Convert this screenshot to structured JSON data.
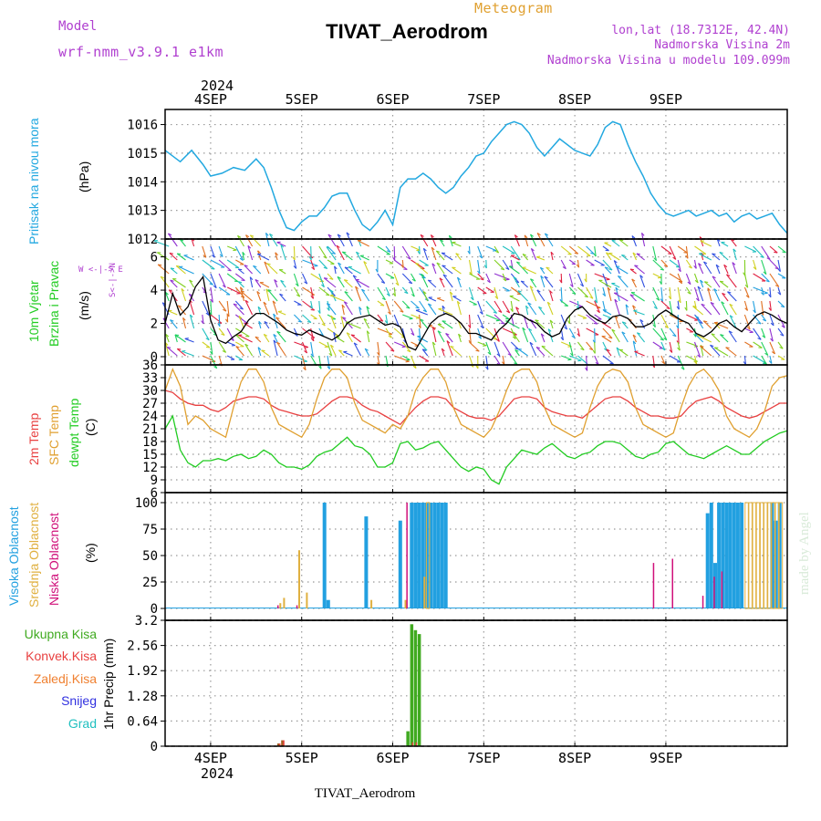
{
  "header": {
    "model_label": "Model",
    "model_name": "wrf-nmm_v3.9.1 e1km",
    "product": "Meteogram",
    "station": "TIVAT_Aerodrom",
    "lonlat": "lon,lat (18.7312E, 42.4N)",
    "altitude": "Nadmorska Visina 2m",
    "model_altitude": "Nadmorska Visina u modelu 109.099m",
    "year": "2024",
    "footer_station": "TIVAT_Aerodrom",
    "watermark": "made by Angel"
  },
  "days": [
    "4SEP",
    "5SEP",
    "6SEP",
    "7SEP",
    "8SEP",
    "9SEP"
  ],
  "colors": {
    "pressure": "#22a8e0",
    "wind_speed": "#000000",
    "gust": "#e83030",
    "temp2m": "#e84040",
    "sfc": "#e0a030",
    "dewpt": "#22cc22",
    "high_cloud": "#22a0e0",
    "mid_cloud": "#e0b040",
    "low_cloud": "#d0107a",
    "precip_total": "#40aa20",
    "precip_conv": "#e84040",
    "precip_grid": "#f08030",
    "snow": "#3030e0",
    "hail": "#20c0c0",
    "purple_text": "#b040d0"
  },
  "panels": {
    "pressure": {
      "label1": "Pritisak na nivou mora",
      "unit": "(hPa)",
      "ticks": [
        1012,
        1013,
        1014,
        1015,
        1016
      ]
    },
    "wind": {
      "label1": "10m Vjetar",
      "label2": "Brzina i Pravac",
      "unit": "(m/s)",
      "ticks": [
        0,
        2,
        4,
        6
      ],
      "compass": "W <-|-> E",
      "compass_v": "S<-|->N"
    },
    "temp": {
      "label1": "2m Temp",
      "label2": "SFC Temp",
      "label3": "dewpt Temp",
      "unit": "(C)",
      "ticks": [
        6,
        9,
        12,
        15,
        18,
        21,
        24,
        27,
        30,
        33,
        36
      ]
    },
    "cloud": {
      "label1": "Visoka Oblacnost",
      "label2": "Srednja Oblacnost",
      "label3": "Niska Oblacnost",
      "unit": "(%)",
      "ticks": [
        0,
        25,
        50,
        75,
        100
      ]
    },
    "precip": {
      "unit": "1hr Precip (mm)",
      "ticks": [
        "0",
        "0.64",
        "1.28",
        "1.92",
        "2.56",
        "3.2"
      ],
      "legend": [
        "Ukupna Kisa",
        "Konvek.Kisa",
        "Zaledj.Kisa",
        "Snijeg",
        "Grad"
      ]
    }
  },
  "chart_data": [
    {
      "type": "line",
      "title": "Pritisak na nivou mora",
      "ylabel": "(hPa)",
      "ylim": [
        1012,
        1016.4
      ],
      "xlim_hours": [
        -12,
        152
      ],
      "x_hours": [
        -12,
        -8,
        -5,
        -2,
        0,
        3,
        6,
        9,
        12,
        14,
        16,
        18,
        20,
        22,
        24,
        26,
        28,
        30,
        32,
        34,
        36,
        38,
        40,
        42,
        44,
        46,
        48,
        50,
        52,
        54,
        56,
        58,
        60,
        62,
        64,
        66,
        68,
        70,
        72,
        74,
        76,
        78,
        80,
        82,
        84,
        86,
        88,
        90,
        92,
        94,
        96,
        98,
        100,
        102,
        104,
        106,
        108,
        110,
        112,
        114,
        116,
        118,
        120,
        122,
        124,
        126,
        128,
        130,
        132,
        134,
        136,
        138,
        140,
        142,
        144,
        146,
        148,
        150,
        152
      ],
      "series": [
        {
          "values": [
            1015.1,
            1014.7,
            1015.1,
            1014.6,
            1014.2,
            1014.3,
            1014.5,
            1014.4,
            1014.8,
            1014.5,
            1013.8,
            1013.0,
            1012.4,
            1012.3,
            1012.6,
            1012.8,
            1012.8,
            1013.1,
            1013.5,
            1013.6,
            1013.6,
            1013.0,
            1012.5,
            1012.3,
            1012.6,
            1013.0,
            1012.5,
            1013.8,
            1014.1,
            1014.1,
            1014.3,
            1014.1,
            1013.8,
            1013.6,
            1013.8,
            1014.2,
            1014.5,
            1014.9,
            1015.0,
            1015.4,
            1015.7,
            1016.0,
            1016.1,
            1016.0,
            1015.7,
            1015.2,
            1014.9,
            1015.2,
            1015.5,
            1015.3,
            1015.1,
            1015.0,
            1014.9,
            1015.3,
            1015.9,
            1016.1,
            1016.0,
            1015.3,
            1014.7,
            1014.2,
            1013.6,
            1013.2,
            1012.9,
            1012.8,
            1012.9,
            1013.0,
            1012.8,
            1012.9,
            1013.0,
            1012.8,
            1012.9,
            1012.6,
            1012.8,
            1012.9,
            1012.7,
            1012.8,
            1012.9,
            1012.5,
            1012.2
          ]
        }
      ]
    },
    {
      "type": "line",
      "title": "10m Vjetar Brzina i Pravac",
      "ylabel": "(m/s)",
      "ylim": [
        0,
        7
      ],
      "xlim_hours": [
        -12,
        152
      ],
      "x_hours": [
        -12,
        -10,
        -8,
        -6,
        -4,
        -2,
        0,
        2,
        4,
        6,
        8,
        10,
        12,
        14,
        16,
        18,
        20,
        22,
        24,
        26,
        28,
        30,
        32,
        34,
        36,
        38,
        40,
        42,
        44,
        46,
        48,
        50,
        52,
        54,
        56,
        58,
        60,
        62,
        64,
        66,
        68,
        70,
        72,
        74,
        76,
        78,
        80,
        82,
        84,
        86,
        88,
        90,
        92,
        94,
        96,
        98,
        100,
        102,
        104,
        106,
        108,
        110,
        112,
        114,
        116,
        118,
        120,
        122,
        124,
        126,
        128,
        130,
        132,
        134,
        136,
        138,
        140,
        142,
        144,
        146,
        148,
        150,
        152
      ],
      "series": [
        {
          "name": "Brzina",
          "values": [
            2.0,
            3.8,
            2.5,
            3.0,
            4.2,
            4.8,
            2.2,
            1.0,
            0.8,
            1.2,
            1.5,
            2.2,
            2.6,
            2.6,
            2.3,
            2.0,
            1.6,
            1.4,
            1.3,
            1.6,
            1.4,
            1.2,
            1.0,
            1.3,
            2.0,
            2.3,
            2.4,
            2.5,
            2.2,
            1.9,
            2.0,
            1.8,
            0.6,
            0.4,
            1.2,
            2.0,
            2.4,
            2.6,
            2.4,
            2.0,
            1.4,
            1.4,
            1.2,
            1.0,
            1.6,
            2.0,
            2.6,
            2.5,
            2.2,
            2.0,
            1.5,
            1.2,
            1.4,
            2.3,
            2.8,
            3.0,
            2.5,
            2.2,
            2.0,
            2.4,
            2.5,
            2.3,
            1.8,
            1.8,
            2.0,
            2.5,
            2.8,
            2.5,
            2.2,
            2.0,
            1.4,
            1.2,
            1.5,
            2.0,
            2.2,
            1.8,
            1.5,
            2.0,
            2.5,
            2.7,
            2.5,
            2.2,
            2.0
          ]
        }
      ]
    },
    {
      "type": "line",
      "title": "2m Temp / SFC Temp / dewpt Temp",
      "ylabel": "(C)",
      "ylim": [
        6,
        36
      ],
      "xlim_hours": [
        -12,
        152
      ],
      "x_hours": [
        -12,
        -10,
        -8,
        -6,
        -4,
        -2,
        0,
        2,
        4,
        6,
        8,
        10,
        12,
        14,
        16,
        18,
        20,
        22,
        24,
        26,
        28,
        30,
        32,
        34,
        36,
        38,
        40,
        42,
        44,
        46,
        48,
        50,
        52,
        54,
        56,
        58,
        60,
        62,
        64,
        66,
        68,
        70,
        72,
        74,
        76,
        78,
        80,
        82,
        84,
        86,
        88,
        90,
        92,
        94,
        96,
        98,
        100,
        102,
        104,
        106,
        108,
        110,
        112,
        114,
        116,
        118,
        120,
        122,
        124,
        126,
        128,
        130,
        132,
        134,
        136,
        138,
        140,
        142,
        144,
        146,
        148,
        150,
        152
      ],
      "series": [
        {
          "name": "2m Temp",
          "values": [
            30,
            29.5,
            28,
            27,
            26.5,
            26.5,
            25.5,
            25,
            26,
            27.5,
            28,
            28.5,
            28.5,
            28,
            26.5,
            25.5,
            25,
            24.5,
            24,
            24,
            24.5,
            26,
            27.5,
            28.5,
            28.5,
            28,
            26.5,
            25.5,
            25,
            24,
            23,
            22,
            24,
            26,
            27.5,
            28.5,
            28.5,
            28,
            26,
            25,
            24,
            23.5,
            23.5,
            23,
            24,
            26,
            28,
            28.5,
            28.5,
            28,
            26,
            25,
            24.5,
            24,
            24,
            23.5,
            25,
            26.5,
            28,
            28.5,
            28.5,
            27.5,
            26,
            25,
            24,
            24,
            23.5,
            23.5,
            24,
            26,
            27.5,
            28,
            28.5,
            27.5,
            26,
            25,
            24,
            23.5,
            24,
            25,
            26,
            27,
            27
          ]
        },
        {
          "name": "SFC Temp",
          "values": [
            30,
            35,
            31,
            22,
            24,
            23,
            21,
            20,
            19,
            26,
            32,
            35,
            35,
            32,
            26,
            22,
            21,
            20,
            19,
            22,
            28,
            33,
            35,
            35,
            33,
            27,
            23,
            22,
            21,
            20,
            22,
            21,
            24,
            30,
            33,
            35,
            35,
            32,
            26,
            22,
            21,
            20,
            19,
            21,
            25,
            30,
            34,
            35,
            35,
            32,
            26,
            22,
            21,
            20,
            19,
            20,
            26,
            31,
            34,
            35,
            34.5,
            32,
            26,
            22,
            21,
            20,
            19,
            20,
            26,
            31,
            34,
            35,
            33,
            30,
            24,
            21,
            20,
            19,
            21,
            25,
            31,
            33,
            33.5
          ]
        },
        {
          "name": "dewpt Temp",
          "values": [
            21,
            24,
            16,
            13,
            12,
            13.5,
            13.5,
            14,
            13.5,
            14.5,
            15,
            14,
            14.5,
            16,
            15,
            13,
            12,
            12,
            11.5,
            12.5,
            14.5,
            15.5,
            16,
            17.5,
            19,
            17,
            16.5,
            15,
            12,
            12,
            13,
            17.5,
            18,
            16,
            16.5,
            17.5,
            18,
            16,
            14,
            12,
            11,
            12,
            11.5,
            9,
            8,
            12,
            14,
            16,
            15.5,
            15,
            16.5,
            17.5,
            16,
            14.5,
            14,
            15,
            15.5,
            17,
            18,
            18,
            17.5,
            16,
            14.5,
            14,
            15,
            15.5,
            17.5,
            18,
            16.5,
            15,
            14.5,
            14,
            15,
            16,
            17,
            16,
            15,
            15,
            16.5,
            18,
            19,
            20,
            20.5
          ]
        }
      ]
    },
    {
      "type": "bar",
      "title": "Oblacnost",
      "ylabel": "(%)",
      "ylim": [
        0,
        100
      ],
      "xlim_hours": [
        -12,
        152
      ],
      "series": [
        {
          "name": "Visoka Oblacnost",
          "x_hours": [
            30,
            31,
            41,
            50,
            53,
            54,
            55,
            56,
            57,
            58,
            59,
            60,
            61,
            62,
            131,
            132,
            133,
            134,
            135,
            136,
            137,
            138,
            139,
            140,
            148,
            149,
            150
          ],
          "values": [
            100,
            8,
            87,
            83,
            100,
            100,
            100,
            100,
            100,
            100,
            100,
            100,
            100,
            100,
            90,
            100,
            43,
            100,
            100,
            100,
            100,
            100,
            100,
            100,
            100,
            83,
            100
          ]
        },
        {
          "name": "Srednja Oblacnost",
          "x_hours": [
            18,
            19,
            23,
            25,
            42,
            51,
            56,
            57,
            141,
            142,
            143,
            144,
            145,
            146,
            147,
            148,
            149,
            150
          ],
          "values": [
            5,
            10,
            55,
            15,
            8,
            8,
            30,
            100,
            100,
            100,
            100,
            100,
            100,
            100,
            100,
            100,
            100,
            100
          ]
        },
        {
          "name": "Niska Oblacnost",
          "x_hours": [
            18,
            23,
            52,
            117,
            122,
            130,
            133,
            135
          ],
          "values": [
            3,
            3,
            100,
            43,
            47,
            12,
            30,
            35
          ]
        }
      ]
    },
    {
      "type": "bar",
      "title": "1hr Precip",
      "ylabel": "1hr Precip (mm)",
      "ylim": [
        0,
        3.2
      ],
      "xlim_hours": [
        -12,
        152
      ],
      "series": [
        {
          "name": "Ukupna Kisa",
          "x_hours": [
            18,
            19,
            52,
            53,
            54,
            55
          ],
          "values": [
            0.07,
            0.15,
            0.38,
            3.1,
            2.95,
            2.85
          ]
        },
        {
          "name": "Konvek.Kisa",
          "x_hours": [
            18,
            19,
            53,
            54
          ],
          "values": [
            0.07,
            0.15,
            0.1,
            0.1
          ]
        }
      ]
    }
  ]
}
